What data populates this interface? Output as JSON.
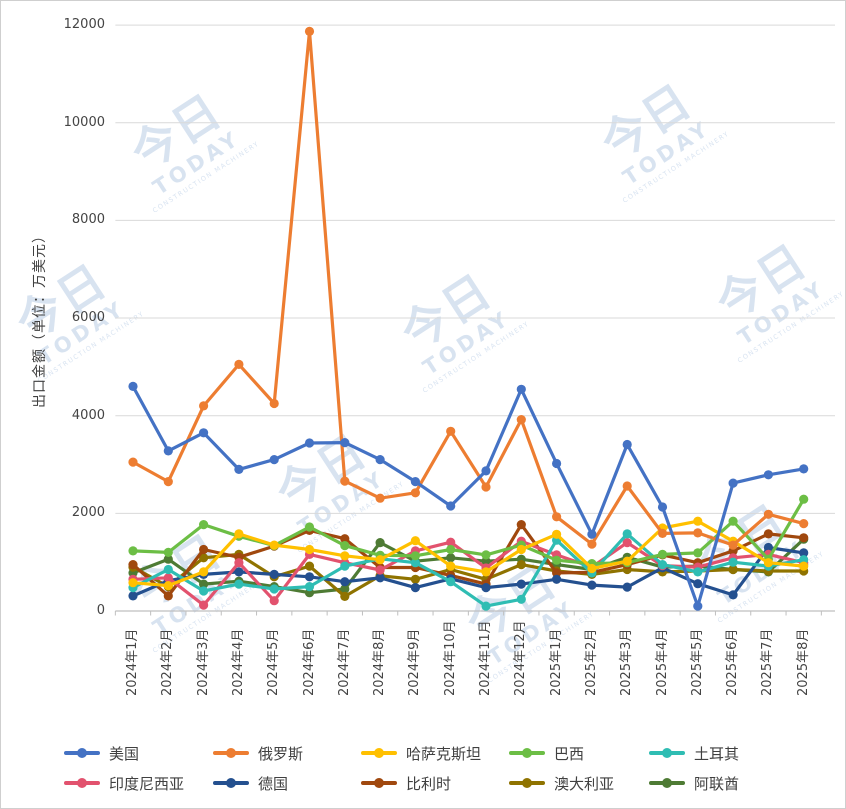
{
  "watermark": {
    "brand_cn": "今日",
    "brand_en": "TODAY",
    "brand_sub": "CONSTRUCTION MACHINERY"
  },
  "chart_data": {
    "type": "line",
    "title": "",
    "xlabel": "",
    "ylabel": "出口金额（单位：万美元）",
    "ylim": [
      0,
      12000
    ],
    "y_tick_step": 2000,
    "grid": true,
    "legend_position": "bottom",
    "marker": "circle",
    "categories": [
      "2024年1月",
      "2024年2月",
      "2024年3月",
      "2024年4月",
      "2024年5月",
      "2024年6月",
      "2024年7月",
      "2024年8月",
      "2024年9月",
      "2024年10月",
      "2024年11月",
      "2024年12月",
      "2025年1月",
      "2025年2月",
      "2025年3月",
      "2025年4月",
      "2025年5月",
      "2025年6月",
      "2025年7月",
      "2025年8月"
    ],
    "series": [
      {
        "name": "美国",
        "color": "#4472C4",
        "values": [
          4600,
          3280,
          3650,
          2900,
          3100,
          3440,
          3450,
          3100,
          2650,
          2150,
          2870,
          4540,
          3020,
          1570,
          3410,
          2130,
          100,
          2620,
          2790,
          2910
        ]
      },
      {
        "name": "俄罗斯",
        "color": "#ED7D31",
        "values": [
          3050,
          2650,
          4200,
          5050,
          4250,
          11870,
          2660,
          2310,
          2420,
          3680,
          2540,
          3920,
          1930,
          1370,
          2560,
          1590,
          1600,
          1350,
          1980,
          1790
        ]
      },
      {
        "name": "哈萨克斯坦",
        "color": "#FFC000",
        "values": [
          580,
          520,
          800,
          1580,
          1350,
          1260,
          1130,
          1050,
          1440,
          920,
          800,
          1260,
          1570,
          870,
          1020,
          1700,
          1840,
          1430,
          990,
          920
        ]
      },
      {
        "name": "巴西",
        "color": "#6CBE45",
        "values": [
          1230,
          1200,
          1770,
          1530,
          1340,
          1720,
          1340,
          1140,
          1130,
          1260,
          1150,
          1350,
          1040,
          970,
          990,
          1160,
          1190,
          1840,
          1060,
          2290
        ]
      },
      {
        "name": "土耳其",
        "color": "#2FBDB3",
        "values": [
          480,
          850,
          410,
          550,
          450,
          500,
          920,
          1070,
          990,
          600,
          100,
          240,
          1450,
          780,
          1580,
          950,
          800,
          1000,
          920,
          1050
        ]
      },
      {
        "name": "印度尼西亚",
        "color": "#E2526E",
        "values": [
          650,
          680,
          120,
          990,
          210,
          1160,
          990,
          840,
          1230,
          1410,
          880,
          1430,
          1150,
          900,
          1400,
          930,
          900,
          1090,
          1160,
          990
        ]
      },
      {
        "name": "德国",
        "color": "#24508F",
        "values": [
          310,
          620,
          750,
          800,
          750,
          700,
          600,
          680,
          480,
          660,
          480,
          550,
          650,
          530,
          490,
          885,
          560,
          330,
          1300,
          1190
        ]
      },
      {
        "name": "比利时",
        "color": "#A0480E",
        "values": [
          950,
          310,
          1260,
          1100,
          1330,
          1650,
          1480,
          890,
          890,
          730,
          550,
          1770,
          780,
          790,
          950,
          1150,
          990,
          1230,
          1580,
          1500
        ]
      },
      {
        "name": "澳大利亚",
        "color": "#8F7300",
        "values": [
          900,
          500,
          1090,
          1160,
          700,
          920,
          300,
          720,
          650,
          850,
          650,
          950,
          820,
          750,
          850,
          800,
          820,
          850,
          820,
          820
        ]
      },
      {
        "name": "阿联酋",
        "color": "#4E7B34",
        "values": [
          780,
          1060,
          550,
          610,
          500,
          375,
          450,
          1400,
          1020,
          1090,
          1020,
          1060,
          950,
          850,
          1100,
          900,
          920,
          850,
          800,
          1470
        ]
      }
    ]
  }
}
